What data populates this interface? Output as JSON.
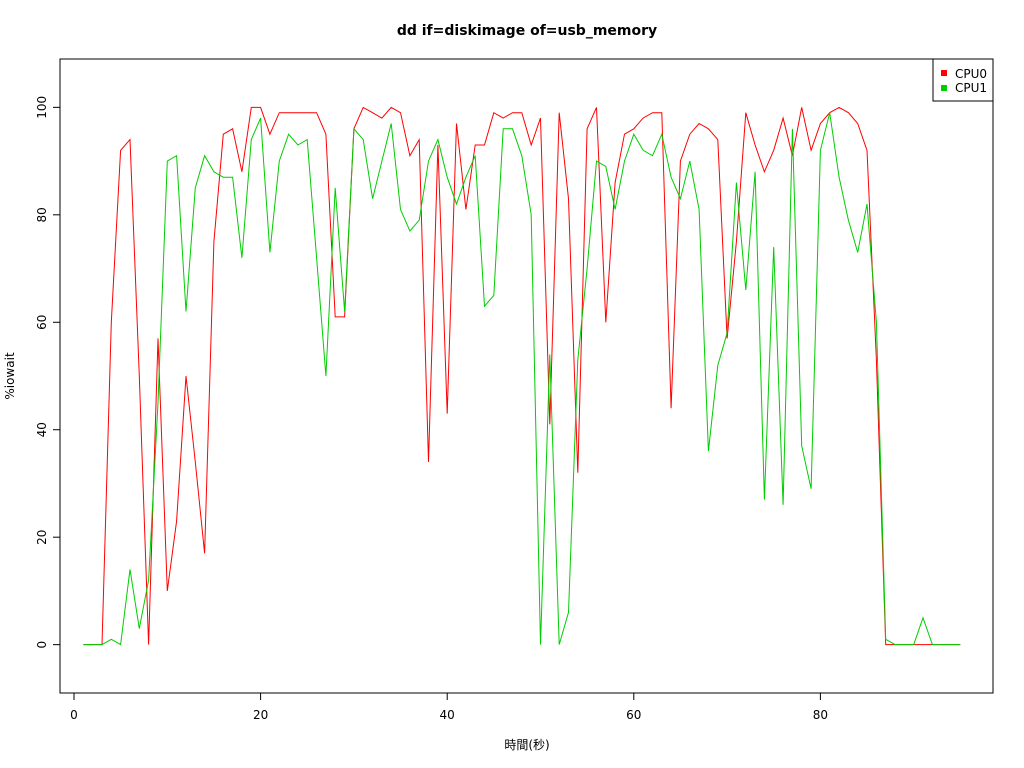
{
  "chart_data": {
    "type": "line",
    "title": "dd if=diskimage of=usb_memory",
    "xlabel": "時間(秒)",
    "ylabel": "%iowait",
    "xlim": [
      -1.5,
      98.5
    ],
    "ylim": [
      -9,
      109
    ],
    "xticks": [
      0,
      20,
      40,
      60,
      80
    ],
    "yticks": [
      0,
      20,
      40,
      60,
      80,
      100
    ],
    "legend_position": "top-right",
    "series": [
      {
        "name": "CPU0",
        "color": "#ff0000",
        "points": [
          [
            1,
            0
          ],
          [
            2,
            0
          ],
          [
            3,
            0
          ],
          [
            4,
            60
          ],
          [
            5,
            92
          ],
          [
            6,
            94
          ],
          [
            7,
            50
          ],
          [
            8,
            0
          ],
          [
            9,
            57
          ],
          [
            10,
            10
          ],
          [
            11,
            23
          ],
          [
            12,
            50
          ],
          [
            13,
            34
          ],
          [
            14,
            17
          ],
          [
            15,
            75
          ],
          [
            16,
            95
          ],
          [
            17,
            96
          ],
          [
            18,
            88
          ],
          [
            19,
            100
          ],
          [
            20,
            100
          ],
          [
            21,
            95
          ],
          [
            22,
            99
          ],
          [
            23,
            99
          ],
          [
            24,
            99
          ],
          [
            25,
            99
          ],
          [
            26,
            99
          ],
          [
            27,
            95
          ],
          [
            28,
            61
          ],
          [
            29,
            61
          ],
          [
            30,
            96
          ],
          [
            31,
            100
          ],
          [
            32,
            99
          ],
          [
            33,
            98
          ],
          [
            34,
            100
          ],
          [
            35,
            99
          ],
          [
            36,
            91
          ],
          [
            37,
            94
          ],
          [
            38,
            34
          ],
          [
            39,
            93
          ],
          [
            40,
            43
          ],
          [
            41,
            97
          ],
          [
            42,
            81
          ],
          [
            43,
            93
          ],
          [
            44,
            93
          ],
          [
            45,
            99
          ],
          [
            46,
            98
          ],
          [
            47,
            99
          ],
          [
            48,
            99
          ],
          [
            49,
            93
          ],
          [
            50,
            98
          ],
          [
            51,
            41
          ],
          [
            52,
            99
          ],
          [
            53,
            83
          ],
          [
            54,
            32
          ],
          [
            55,
            96
          ],
          [
            56,
            100
          ],
          [
            57,
            60
          ],
          [
            58,
            86
          ],
          [
            59,
            95
          ],
          [
            60,
            96
          ],
          [
            61,
            98
          ],
          [
            62,
            99
          ],
          [
            63,
            99
          ],
          [
            64,
            44
          ],
          [
            65,
            90
          ],
          [
            66,
            95
          ],
          [
            67,
            97
          ],
          [
            68,
            96
          ],
          [
            69,
            94
          ],
          [
            70,
            57
          ],
          [
            71,
            75
          ],
          [
            72,
            99
          ],
          [
            73,
            93
          ],
          [
            74,
            88
          ],
          [
            75,
            92
          ],
          [
            76,
            98
          ],
          [
            77,
            91
          ],
          [
            78,
            100
          ],
          [
            79,
            92
          ],
          [
            80,
            97
          ],
          [
            81,
            99
          ],
          [
            82,
            100
          ],
          [
            83,
            99
          ],
          [
            84,
            97
          ],
          [
            85,
            92
          ],
          [
            86,
            53
          ],
          [
            87,
            0
          ],
          [
            88,
            0
          ],
          [
            89,
            0
          ],
          [
            90,
            0
          ],
          [
            91,
            0
          ],
          [
            92,
            0
          ],
          [
            93,
            0
          ],
          [
            94,
            0
          ],
          [
            95,
            0
          ]
        ]
      },
      {
        "name": "CPU1",
        "color": "#00cd00",
        "points": [
          [
            1,
            0
          ],
          [
            2,
            0
          ],
          [
            3,
            0
          ],
          [
            4,
            1
          ],
          [
            5,
            0
          ],
          [
            6,
            14
          ],
          [
            7,
            3
          ],
          [
            8,
            12
          ],
          [
            9,
            45
          ],
          [
            10,
            90
          ],
          [
            11,
            91
          ],
          [
            12,
            62
          ],
          [
            13,
            85
          ],
          [
            14,
            91
          ],
          [
            15,
            88
          ],
          [
            16,
            87
          ],
          [
            17,
            87
          ],
          [
            18,
            72
          ],
          [
            19,
            94
          ],
          [
            20,
            98
          ],
          [
            21,
            73
          ],
          [
            22,
            90
          ],
          [
            23,
            95
          ],
          [
            24,
            93
          ],
          [
            25,
            94
          ],
          [
            26,
            72
          ],
          [
            27,
            50
          ],
          [
            28,
            85
          ],
          [
            29,
            62
          ],
          [
            30,
            96
          ],
          [
            31,
            94
          ],
          [
            32,
            83
          ],
          [
            33,
            90
          ],
          [
            34,
            97
          ],
          [
            35,
            81
          ],
          [
            36,
            77
          ],
          [
            37,
            79
          ],
          [
            38,
            90
          ],
          [
            39,
            94
          ],
          [
            40,
            87
          ],
          [
            41,
            82
          ],
          [
            42,
            87
          ],
          [
            43,
            91
          ],
          [
            44,
            63
          ],
          [
            45,
            65
          ],
          [
            46,
            96
          ],
          [
            47,
            96
          ],
          [
            48,
            91
          ],
          [
            49,
            80
          ],
          [
            50,
            0
          ],
          [
            51,
            54
          ],
          [
            52,
            0
          ],
          [
            53,
            6
          ],
          [
            54,
            53
          ],
          [
            55,
            70
          ],
          [
            56,
            90
          ],
          [
            57,
            89
          ],
          [
            58,
            81
          ],
          [
            59,
            90
          ],
          [
            60,
            95
          ],
          [
            61,
            92
          ],
          [
            62,
            91
          ],
          [
            63,
            95
          ],
          [
            64,
            87
          ],
          [
            65,
            83
          ],
          [
            66,
            90
          ],
          [
            67,
            81
          ],
          [
            68,
            36
          ],
          [
            69,
            52
          ],
          [
            70,
            58
          ],
          [
            71,
            86
          ],
          [
            72,
            66
          ],
          [
            73,
            88
          ],
          [
            74,
            27
          ],
          [
            75,
            74
          ],
          [
            76,
            26
          ],
          [
            77,
            96
          ],
          [
            78,
            37
          ],
          [
            79,
            29
          ],
          [
            80,
            92
          ],
          [
            81,
            99
          ],
          [
            82,
            87
          ],
          [
            83,
            79
          ],
          [
            84,
            73
          ],
          [
            85,
            82
          ],
          [
            86,
            60
          ],
          [
            87,
            1
          ],
          [
            88,
            0
          ],
          [
            89,
            0
          ],
          [
            90,
            0
          ],
          [
            91,
            5
          ],
          [
            92,
            0
          ],
          [
            93,
            0
          ],
          [
            94,
            0
          ],
          [
            95,
            0
          ]
        ]
      }
    ]
  }
}
